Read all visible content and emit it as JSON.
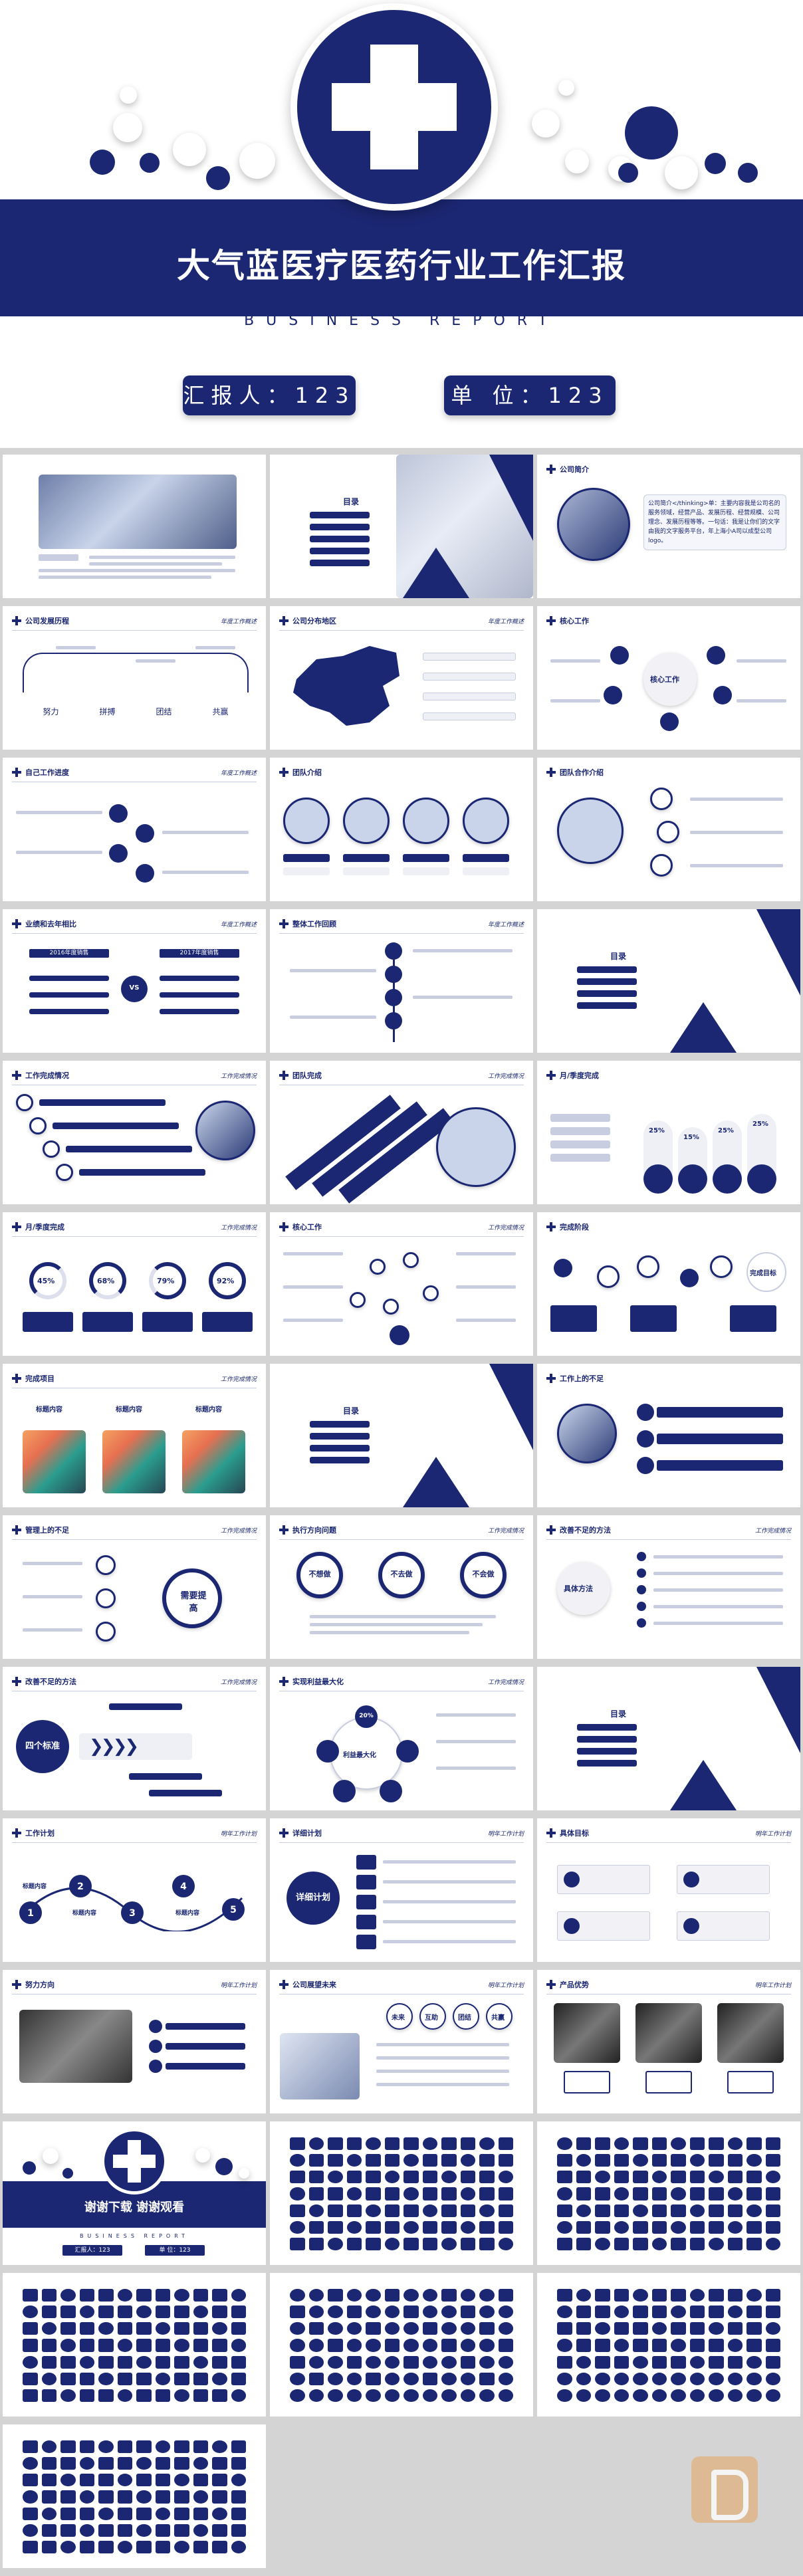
{
  "hero": {
    "title": "大气蓝医疗医药行业工作汇报",
    "subtitle": "BUSINESS REPORT",
    "reporter": "汇报人：123",
    "unit": "单 位：123"
  },
  "slides": {
    "s2_toc_title": "目录",
    "s3_title": "公司简介",
    "s3_text": "公司简介</thinking>单：主要内容我是公司名的服务领域，经营产品、发展历程、经营规模、公司理念、发展历程等等。一句话：我是让你们的文字由我的文字服务平台，年上海小A司以成型公司logo。",
    "s4_title": "公司发展历程",
    "s4_tag": "年度工作概述",
    "s4_words": [
      "努力",
      "拼搏",
      "团结",
      "共赢"
    ],
    "s5_title": "公司分布地区",
    "s5_tag": "年度工作概述",
    "s6_title": "核心工作",
    "s6_center": "核心工作",
    "s7_title": "自己工作进度",
    "s7_tag": "年度工作概述",
    "s8_title": "团队介绍",
    "s9_title": "团队合作介绍",
    "s10_title": "业绩和去年相比",
    "s10_tag": "年度工作概述",
    "s10_left": "2016年度销售",
    "s10_right": "2017年度销售",
    "s10_vs": "VS",
    "s11_title": "整体工作回顾",
    "s11_tag": "年度工作概述",
    "s12_toc_title": "目录",
    "s13_title": "工作完成情况",
    "s13_tag": "工作完成情况",
    "s14_title": "团队完成",
    "s14_tag": "工作完成情况",
    "s15_title": "月/季度完成",
    "s15_pcts": [
      "25%",
      "15%",
      "25%",
      "25%"
    ],
    "s16_title": "月/季度完成",
    "s16_tag": "工作完成情况",
    "s16_pcts": [
      "45%",
      "68%",
      "79%",
      "92%"
    ],
    "s17_title": "核心工作",
    "s17_tag": "工作完成情况",
    "s18_title": "完成阶段",
    "s18_badge": "完成目标",
    "s19_title": "完成项目",
    "s19_tag": "工作完成情况",
    "s19_label": "标题内容",
    "s20_toc_title": "目录",
    "s21_title": "工作上的不足",
    "s22_title": "管理上的不足",
    "s22_tag": "工作完成情况",
    "s22_center": "需要提高",
    "s23_title": "执行方向问题",
    "s23_tag": "工作完成情况",
    "s23_circles": [
      "不想做",
      "不去做",
      "不会做"
    ],
    "s24_title": "改善不足的方法",
    "s24_tag": "工作完成情况",
    "s24_center": "具体方法",
    "s25_title": "改善不足的方法",
    "s25_tag": "工作完成情况",
    "s25_center": "四个标准",
    "s26_title": "实现利益最大化",
    "s26_tag": "工作完成情况",
    "s26_pct": "20%",
    "s26_center": "利益最大化",
    "s27_toc_title": "目录",
    "s28_title": "工作计划",
    "s28_tag": "明年工作计划",
    "s28_nums": [
      "1",
      "2",
      "3",
      "4",
      "5"
    ],
    "s28_label": "标题内容",
    "s29_title": "详细计划",
    "s29_tag": "明年工作计划",
    "s29_center": "详细计划",
    "s30_title": "具体目标",
    "s30_tag": "明年工作计划",
    "s31_title": "努力方向",
    "s31_tag": "明年工作计划",
    "s32_title": "公司展望未来",
    "s32_tag": "明年工作计划",
    "s32_words": [
      "未来",
      "互助",
      "团结",
      "共赢"
    ],
    "s33_title": "产品优势",
    "s33_tag": "明年工作计划",
    "s34_thanks": "谢谢下载  谢谢观看",
    "s34_sub": "BUSINESS REPORT",
    "s34_reporter": "汇报人：123",
    "s34_unit": "单 位：123"
  }
}
